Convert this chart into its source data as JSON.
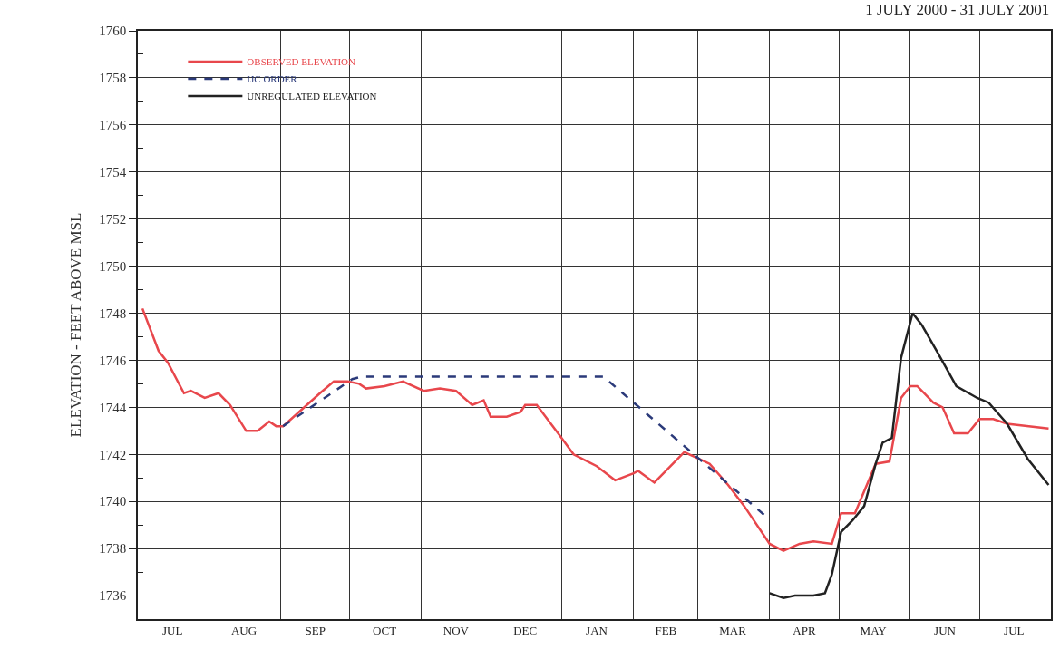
{
  "chart_data": {
    "type": "line",
    "title": "1 JULY 2000 - 31 JULY 2001",
    "ylabel": "ELEVATION - FEET ABOVE MSL",
    "xlim": [
      "2000-07-01",
      "2001-08-01"
    ],
    "xticks": [
      {
        "value": "2000-07-01",
        "label": null
      },
      {
        "value": "2000-07-16",
        "label": "JUL"
      },
      {
        "value": "2000-08-01",
        "label": null
      },
      {
        "value": "2000-08-16",
        "label": "AUG"
      },
      {
        "value": "2000-09-01",
        "label": null
      },
      {
        "value": "2000-09-16",
        "label": "SEP"
      },
      {
        "value": "2000-10-01",
        "label": null
      },
      {
        "value": "2000-10-16",
        "label": "OCT"
      },
      {
        "value": "2000-11-01",
        "label": null
      },
      {
        "value": "2000-11-16",
        "label": "NOV"
      },
      {
        "value": "2000-12-01",
        "label": null
      },
      {
        "value": "2000-12-16",
        "label": "DEC"
      },
      {
        "value": "2001-01-01",
        "label": null
      },
      {
        "value": "2001-01-16",
        "label": "JAN"
      },
      {
        "value": "2001-02-01",
        "label": null
      },
      {
        "value": "2001-02-15",
        "label": "FEB"
      },
      {
        "value": "2001-03-01",
        "label": null
      },
      {
        "value": "2001-03-16",
        "label": "MAR"
      },
      {
        "value": "2001-04-01",
        "label": null
      },
      {
        "value": "2001-04-16",
        "label": "APR"
      },
      {
        "value": "2001-05-01",
        "label": null
      },
      {
        "value": "2001-05-16",
        "label": "MAY"
      },
      {
        "value": "2001-06-01",
        "label": null
      },
      {
        "value": "2001-06-16",
        "label": "JUN"
      },
      {
        "value": "2001-07-01",
        "label": null
      },
      {
        "value": "2001-07-16",
        "label": "JUL"
      }
    ],
    "ylim": [
      1735,
      1760
    ],
    "yticks": [
      1736,
      {
        "value": 1737,
        "label": null
      },
      1738,
      {
        "value": 1739,
        "label": null
      },
      1740,
      {
        "value": 1741,
        "label": null
      },
      1742,
      {
        "value": 1743,
        "label": null
      },
      1744,
      {
        "value": 1745,
        "label": null
      },
      1746,
      {
        "value": 1747,
        "label": null
      },
      1748,
      {
        "value": 1749,
        "label": null
      },
      1750,
      {
        "value": 1751,
        "label": null
      },
      1752,
      {
        "value": 1753,
        "label": null
      },
      1754,
      {
        "value": 1755,
        "label": null
      },
      1756,
      {
        "value": 1757,
        "label": null
      },
      1758,
      {
        "value": 1759,
        "label": null
      },
      1760
    ],
    "grid": true,
    "legend": "top left",
    "marker": "none",
    "series": [
      {
        "name": "OBSERVED ELEVATION",
        "color": "#e8474c",
        "line_style": "solid",
        "x": [
          "2000-07-03",
          "2000-07-10",
          "2000-07-14",
          "2000-07-21",
          "2000-07-24",
          "2000-07-30",
          "2000-08-05",
          "2000-08-10",
          "2000-08-17",
          "2000-08-22",
          "2000-08-27",
          "2000-08-30",
          "2000-09-02",
          "2000-09-10",
          "2000-09-18",
          "2000-09-24",
          "2000-09-30",
          "2000-10-05",
          "2000-10-08",
          "2000-10-16",
          "2000-10-24",
          "2000-11-02",
          "2000-11-09",
          "2000-11-16",
          "2000-11-23",
          "2000-11-28",
          "2000-12-01",
          "2000-12-08",
          "2000-12-14",
          "2000-12-16",
          "2000-12-21",
          "2000-12-31",
          "2001-01-06",
          "2001-01-16",
          "2001-01-24",
          "2001-02-01",
          "2001-02-03",
          "2001-02-10",
          "2001-02-23",
          "2001-03-06",
          "2001-03-14",
          "2001-03-21",
          "2001-04-01",
          "2001-04-07",
          "2001-04-14",
          "2001-04-20",
          "2001-04-28",
          "2001-05-02",
          "2001-05-08",
          "2001-05-17",
          "2001-05-23",
          "2001-05-28",
          "2001-06-01",
          "2001-06-04",
          "2001-06-11",
          "2001-06-15",
          "2001-06-20",
          "2001-06-26",
          "2001-07-01",
          "2001-07-07",
          "2001-07-13",
          "2001-07-31"
        ],
        "values": [
          1748.2,
          1746.4,
          1745.9,
          1744.6,
          1744.7,
          1744.4,
          1744.6,
          1744.1,
          1743.0,
          1743.0,
          1743.4,
          1743.2,
          1743.2,
          1743.9,
          1744.6,
          1745.1,
          1745.1,
          1745.0,
          1744.8,
          1744.9,
          1745.1,
          1744.7,
          1744.8,
          1744.7,
          1744.1,
          1744.3,
          1743.6,
          1743.6,
          1743.8,
          1744.1,
          1744.1,
          1742.8,
          1742.0,
          1741.5,
          1740.9,
          1741.2,
          1741.3,
          1740.8,
          1742.1,
          1741.6,
          1740.7,
          1739.8,
          1738.2,
          1737.9,
          1738.2,
          1738.3,
          1738.2,
          1739.5,
          1739.5,
          1741.6,
          1741.7,
          1744.4,
          1744.9,
          1744.9,
          1744.2,
          1744.0,
          1742.9,
          1742.9,
          1743.5,
          1743.5,
          1743.3,
          1743.1
        ]
      },
      {
        "name": "IJC ORDER",
        "color": "#2b3a7a",
        "line_style": "dashed",
        "x": [
          "2000-09-02",
          "2000-10-02",
          "2000-10-06",
          "2001-01-19",
          "2001-03-30"
        ],
        "values": [
          1743.2,
          1745.2,
          1745.3,
          1745.3,
          1739.4
        ]
      },
      {
        "name": "UNREGULATED ELEVATION",
        "color": "#222222",
        "line_style": "solid",
        "x": [
          "2001-04-01",
          "2001-04-07",
          "2001-04-12",
          "2001-04-20",
          "2001-04-25",
          "2001-04-28",
          "2001-05-02",
          "2001-05-07",
          "2001-05-12",
          "2001-05-17",
          "2001-05-20",
          "2001-05-24",
          "2001-05-28",
          "2001-06-02",
          "2001-06-06",
          "2001-06-13",
          "2001-06-21",
          "2001-06-30",
          "2001-07-05",
          "2001-07-13",
          "2001-07-22",
          "2001-07-31"
        ],
        "values": [
          1736.1,
          1735.9,
          1736.0,
          1736.0,
          1736.1,
          1736.9,
          1738.7,
          1739.2,
          1739.8,
          1741.6,
          1742.5,
          1742.7,
          1746.1,
          1748.0,
          1747.5,
          1746.3,
          1744.9,
          1744.4,
          1744.2,
          1743.3,
          1741.8,
          1740.7
        ]
      }
    ]
  }
}
